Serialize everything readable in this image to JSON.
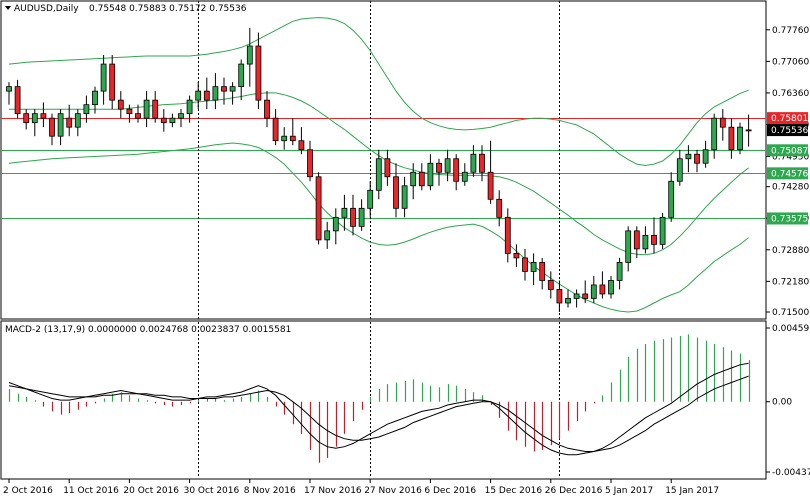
{
  "chart_data": [
    {
      "type": "candlestick",
      "symbol": "AUDUSD,Daily",
      "header_values": "0.75548 0.75883 0.75172 0.75536",
      "ylim": [
        0.715,
        0.78
      ],
      "y_ticks": [
        "0.77760",
        "0.77060",
        "0.76360",
        "0.75660",
        "0.74950",
        "0.74280",
        "0.73580",
        "0.72880",
        "0.72180",
        "0.71500"
      ],
      "x_tick_labels": [
        "2 Oct 2016",
        "11 Oct 2016",
        "20 Oct 2016",
        "30 Oct 2016",
        "8 Nov 2016",
        "17 Nov 2016",
        "27 Nov 2016",
        "6 Dec 2016",
        "15 Dec 2016",
        "26 Dec 2016",
        "5 Jan 2017",
        "15 Jan 2017"
      ],
      "x_tick_index": [
        0,
        7,
        14,
        21,
        28,
        35,
        42,
        49,
        56,
        63,
        70,
        77
      ],
      "separator_index": [
        22,
        42,
        64
      ],
      "current_price": {
        "value": 0.75536,
        "label": "0.75536"
      },
      "levels": [
        {
          "value": 0.75801,
          "label": "0.75801",
          "color": "#e8262a"
        },
        {
          "value": 0.75087,
          "label": "0.75087",
          "color": "#2ea84f"
        },
        {
          "value": 0.74576,
          "label": "0.74576",
          "color": "#2ea84f"
        },
        {
          "value": 0.73575,
          "label": "0.73575",
          "color": "#2ea84f"
        }
      ],
      "candles": [
        [
          0.764,
          0.766,
          0.761,
          0.765
        ],
        [
          0.765,
          0.7665,
          0.758,
          0.759
        ],
        [
          0.759,
          0.76,
          0.7555,
          0.757
        ],
        [
          0.757,
          0.76,
          0.754,
          0.759
        ],
        [
          0.759,
          0.7615,
          0.756,
          0.758
        ],
        [
          0.758,
          0.759,
          0.752,
          0.754
        ],
        [
          0.754,
          0.76,
          0.752,
          0.759
        ],
        [
          0.758,
          0.761,
          0.754,
          0.756
        ],
        [
          0.756,
          0.76,
          0.754,
          0.759
        ],
        [
          0.759,
          0.763,
          0.757,
          0.761
        ],
        [
          0.761,
          0.765,
          0.759,
          0.764
        ],
        [
          0.764,
          0.772,
          0.761,
          0.77
        ],
        [
          0.77,
          0.772,
          0.76,
          0.762
        ],
        [
          0.762,
          0.764,
          0.758,
          0.76
        ],
        [
          0.76,
          0.761,
          0.757,
          0.759
        ],
        [
          0.759,
          0.761,
          0.757,
          0.758
        ],
        [
          0.758,
          0.764,
          0.756,
          0.762
        ],
        [
          0.762,
          0.764,
          0.757,
          0.758
        ],
        [
          0.758,
          0.76,
          0.755,
          0.757
        ],
        [
          0.757,
          0.759,
          0.756,
          0.758
        ],
        [
          0.758,
          0.76,
          0.756,
          0.759
        ],
        [
          0.759,
          0.763,
          0.757,
          0.762
        ],
        [
          0.762,
          0.766,
          0.76,
          0.764
        ],
        [
          0.764,
          0.767,
          0.76,
          0.762
        ],
        [
          0.762,
          0.768,
          0.76,
          0.765
        ],
        [
          0.765,
          0.767,
          0.761,
          0.764
        ],
        [
          0.764,
          0.766,
          0.761,
          0.765
        ],
        [
          0.765,
          0.771,
          0.762,
          0.77
        ],
        [
          0.77,
          0.778,
          0.765,
          0.774
        ],
        [
          0.774,
          0.777,
          0.76,
          0.762
        ],
        [
          0.762,
          0.764,
          0.756,
          0.758
        ],
        [
          0.758,
          0.76,
          0.752,
          0.753
        ],
        [
          0.753,
          0.756,
          0.751,
          0.754
        ],
        [
          0.754,
          0.758,
          0.752,
          0.753
        ],
        [
          0.753,
          0.756,
          0.75,
          0.751
        ],
        [
          0.751,
          0.753,
          0.744,
          0.745
        ],
        [
          0.745,
          0.746,
          0.73,
          0.731
        ],
        [
          0.731,
          0.735,
          0.729,
          0.733
        ],
        [
          0.733,
          0.738,
          0.73,
          0.736
        ],
        [
          0.736,
          0.741,
          0.733,
          0.738
        ],
        [
          0.738,
          0.741,
          0.732,
          0.734
        ],
        [
          0.734,
          0.74,
          0.733,
          0.738
        ],
        [
          0.738,
          0.744,
          0.736,
          0.742
        ],
        [
          0.742,
          0.751,
          0.74,
          0.749
        ],
        [
          0.749,
          0.751,
          0.743,
          0.745
        ],
        [
          0.745,
          0.748,
          0.736,
          0.738
        ],
        [
          0.738,
          0.745,
          0.736,
          0.743
        ],
        [
          0.743,
          0.748,
          0.74,
          0.746
        ],
        [
          0.746,
          0.748,
          0.742,
          0.743
        ],
        [
          0.743,
          0.75,
          0.742,
          0.748
        ],
        [
          0.748,
          0.749,
          0.743,
          0.746
        ],
        [
          0.746,
          0.751,
          0.744,
          0.749
        ],
        [
          0.749,
          0.75,
          0.742,
          0.744
        ],
        [
          0.744,
          0.748,
          0.743,
          0.746
        ],
        [
          0.746,
          0.752,
          0.745,
          0.75
        ],
        [
          0.75,
          0.752,
          0.744,
          0.746
        ],
        [
          0.746,
          0.753,
          0.739,
          0.74
        ],
        [
          0.74,
          0.742,
          0.734,
          0.736
        ],
        [
          0.736,
          0.738,
          0.726,
          0.728
        ],
        [
          0.728,
          0.73,
          0.725,
          0.727
        ],
        [
          0.727,
          0.729,
          0.722,
          0.724
        ],
        [
          0.724,
          0.728,
          0.721,
          0.726
        ],
        [
          0.726,
          0.727,
          0.72,
          0.722
        ],
        [
          0.722,
          0.724,
          0.718,
          0.72
        ],
        [
          0.72,
          0.722,
          0.715,
          0.717
        ],
        [
          0.717,
          0.72,
          0.716,
          0.718
        ],
        [
          0.718,
          0.72,
          0.716,
          0.719
        ],
        [
          0.719,
          0.722,
          0.717,
          0.718
        ],
        [
          0.718,
          0.723,
          0.717,
          0.721
        ],
        [
          0.721,
          0.724,
          0.718,
          0.719
        ],
        [
          0.719,
          0.723,
          0.718,
          0.722
        ],
        [
          0.722,
          0.727,
          0.72,
          0.726
        ],
        [
          0.726,
          0.734,
          0.724,
          0.733
        ],
        [
          0.733,
          0.734,
          0.727,
          0.729
        ],
        [
          0.729,
          0.734,
          0.728,
          0.732
        ],
        [
          0.732,
          0.736,
          0.728,
          0.73
        ],
        [
          0.73,
          0.737,
          0.729,
          0.736
        ],
        [
          0.736,
          0.746,
          0.735,
          0.744
        ],
        [
          0.744,
          0.751,
          0.743,
          0.749
        ],
        [
          0.749,
          0.752,
          0.746,
          0.75
        ],
        [
          0.75,
          0.751,
          0.746,
          0.748
        ],
        [
          0.748,
          0.753,
          0.747,
          0.751
        ],
        [
          0.751,
          0.759,
          0.749,
          0.758
        ],
        [
          0.758,
          0.76,
          0.753,
          0.756
        ],
        [
          0.756,
          0.758,
          0.749,
          0.751
        ],
        [
          0.751,
          0.757,
          0.75,
          0.756
        ],
        [
          0.7554,
          0.7588,
          0.7517,
          0.7553
        ]
      ],
      "bollinger_upper": [
        0.77,
        0.7702,
        0.7704,
        0.7705,
        0.7706,
        0.7707,
        0.7708,
        0.7709,
        0.771,
        0.7711,
        0.7712,
        0.7713,
        0.7714,
        0.7715,
        0.7716,
        0.7717,
        0.7718,
        0.7718,
        0.7718,
        0.7718,
        0.7718,
        0.7718,
        0.772,
        0.7722,
        0.7725,
        0.7728,
        0.7732,
        0.7737,
        0.7745,
        0.7755,
        0.7765,
        0.7775,
        0.7785,
        0.7795,
        0.78,
        0.7802,
        0.7803,
        0.7802,
        0.7798,
        0.779,
        0.7775,
        0.7755,
        0.773,
        0.77,
        0.767,
        0.764,
        0.7615,
        0.7595,
        0.758,
        0.757,
        0.7563,
        0.7558,
        0.7555,
        0.7554,
        0.7555,
        0.7557,
        0.756,
        0.7565,
        0.757,
        0.7575,
        0.7578,
        0.758,
        0.758,
        0.7578,
        0.7575,
        0.757,
        0.7565,
        0.7555,
        0.7545,
        0.753,
        0.7515,
        0.75,
        0.7488,
        0.7478,
        0.7475,
        0.7478,
        0.7485,
        0.75,
        0.752,
        0.7545,
        0.757,
        0.759,
        0.7605,
        0.7615,
        0.7625,
        0.7635,
        0.7642
      ],
      "bollinger_middle": [
        0.76,
        0.76,
        0.76,
        0.76,
        0.76,
        0.76,
        0.76,
        0.76,
        0.76,
        0.76,
        0.76,
        0.76,
        0.76,
        0.76,
        0.7602,
        0.7604,
        0.7606,
        0.7608,
        0.761,
        0.7611,
        0.7612,
        0.7614,
        0.7616,
        0.7618,
        0.762,
        0.7622,
        0.7625,
        0.7628,
        0.7632,
        0.7635,
        0.7636,
        0.7636,
        0.7632,
        0.7626,
        0.7618,
        0.7608,
        0.7595,
        0.7582,
        0.7568,
        0.7555,
        0.754,
        0.7525,
        0.751,
        0.7497,
        0.7485,
        0.7477,
        0.747,
        0.7465,
        0.746,
        0.7457,
        0.7455,
        0.7454,
        0.7453,
        0.7453,
        0.7453,
        0.7453,
        0.7452,
        0.745,
        0.7445,
        0.7438,
        0.7428,
        0.7418,
        0.7405,
        0.7392,
        0.7378,
        0.7365,
        0.735,
        0.7337,
        0.7322,
        0.731,
        0.73,
        0.729,
        0.7282,
        0.7278,
        0.7277,
        0.728,
        0.7288,
        0.73,
        0.7318,
        0.7338,
        0.736,
        0.7382,
        0.7402,
        0.742,
        0.7438,
        0.7455,
        0.747
      ],
      "bollinger_lower": [
        0.748,
        0.7482,
        0.7484,
        0.7486,
        0.7488,
        0.749,
        0.7491,
        0.7492,
        0.7493,
        0.7494,
        0.7495,
        0.7496,
        0.7497,
        0.7498,
        0.7499,
        0.75,
        0.7502,
        0.7504,
        0.7506,
        0.7508,
        0.751,
        0.7512,
        0.7515,
        0.7518,
        0.7521,
        0.7523,
        0.7525,
        0.7523,
        0.752,
        0.7515,
        0.7505,
        0.7493,
        0.7478,
        0.7458,
        0.7438,
        0.7415,
        0.739,
        0.737,
        0.7352,
        0.7337,
        0.7325,
        0.7314,
        0.7305,
        0.73,
        0.7298,
        0.73,
        0.7305,
        0.7312,
        0.732,
        0.7327,
        0.7333,
        0.7338,
        0.7341,
        0.7343,
        0.7345,
        0.734,
        0.733,
        0.7318,
        0.7302,
        0.7285,
        0.7268,
        0.7252,
        0.7238,
        0.7225,
        0.7212,
        0.72,
        0.7188,
        0.7178,
        0.717,
        0.7162,
        0.7156,
        0.7152,
        0.715,
        0.7152,
        0.716,
        0.717,
        0.718,
        0.7188,
        0.7195,
        0.721,
        0.7228,
        0.7245,
        0.7262,
        0.7275,
        0.7288,
        0.73,
        0.7315
      ]
    },
    {
      "type": "macd",
      "title": "MACD-2 (13,17,9) 0.0000000 0.0024768 0.0023837 0.0015581",
      "ylim": [
        -0.004378,
        0.004595
      ],
      "y_ticks": [
        "0.004595",
        "0.00",
        "-0.004378"
      ],
      "histogram": [
        0.0008,
        0.0005,
        0.0003,
        0.0001,
        -0.0003,
        -0.0006,
        -0.0008,
        -0.0007,
        -0.0005,
        -0.0003,
        -0.0001,
        0.0002,
        0.0005,
        0.0006,
        0.0004,
        0.0002,
        0.0001,
        -0.0001,
        -0.0002,
        -0.0003,
        -0.0002,
        -0.0001,
        0.0001,
        0.0002,
        0.0002,
        0.0001,
        0.0002,
        0.0003,
        0.0005,
        0.0007,
        0.0003,
        -0.0003,
        -0.0008,
        -0.0014,
        -0.002,
        -0.003,
        -0.0038,
        -0.0035,
        -0.0028,
        -0.002,
        -0.0012,
        -0.0005,
        0.0003,
        0.0008,
        0.0011,
        0.0012,
        0.0013,
        0.0014,
        0.0012,
        0.001,
        0.0009,
        0.0011,
        0.001,
        0.0008,
        0.0006,
        0.0004,
        -0.0002,
        -0.001,
        -0.0018,
        -0.0024,
        -0.0028,
        -0.0031,
        -0.003,
        -0.0027,
        -0.0023,
        -0.0018,
        -0.0012,
        -0.0006,
        -0.0001,
        0.0004,
        0.0012,
        0.002,
        0.0028,
        0.0033,
        0.0036,
        0.0038,
        0.0039,
        0.004,
        0.0041,
        0.0042,
        0.004,
        0.0038,
        0.0036,
        0.0034,
        0.0032,
        0.003,
        0.0026
      ],
      "macd_line": [
        0.0012,
        0.001,
        0.0008,
        0.0006,
        0.0004,
        0.0002,
        0.0001,
        0.0001,
        0.0002,
        0.0003,
        0.0004,
        0.0005,
        0.0006,
        0.0007,
        0.0006,
        0.0005,
        0.0004,
        0.0003,
        0.0002,
        0.0001,
        0.0001,
        0.0001,
        0.0002,
        0.0003,
        0.0003,
        0.0004,
        0.0005,
        0.0006,
        0.0008,
        0.001,
        0.0008,
        0.0004,
        -0.0002,
        -0.0008,
        -0.0014,
        -0.002,
        -0.0025,
        -0.0028,
        -0.0029,
        -0.0028,
        -0.0026,
        -0.0023,
        -0.002,
        -0.0017,
        -0.0014,
        -0.0012,
        -0.001,
        -0.0008,
        -0.0006,
        -0.0005,
        -0.0004,
        -0.0002,
        -0.0001,
        0.0,
        0.0001,
        0.0001,
        0.0,
        -0.0004,
        -0.0009,
        -0.0014,
        -0.0019,
        -0.0023,
        -0.0027,
        -0.003,
        -0.0032,
        -0.0033,
        -0.0033,
        -0.0032,
        -0.0031,
        -0.0029,
        -0.0026,
        -0.0022,
        -0.0018,
        -0.0014,
        -0.001,
        -0.0007,
        -0.0004,
        -0.0001,
        0.0003,
        0.0007,
        0.0011,
        0.0014,
        0.0017,
        0.0019,
        0.0021,
        0.0023,
        0.0024
      ],
      "signal_line": [
        0.001,
        0.0009,
        0.0008,
        0.0007,
        0.0006,
        0.0005,
        0.0004,
        0.0003,
        0.0003,
        0.0003,
        0.0003,
        0.0004,
        0.0004,
        0.0005,
        0.0005,
        0.0005,
        0.0005,
        0.0004,
        0.0004,
        0.0003,
        0.0003,
        0.0002,
        0.0002,
        0.0002,
        0.0002,
        0.0003,
        0.0003,
        0.0004,
        0.0005,
        0.0006,
        0.0007,
        0.0006,
        0.0004,
        0.0,
        -0.0004,
        -0.0009,
        -0.0014,
        -0.0018,
        -0.0021,
        -0.0023,
        -0.0024,
        -0.0024,
        -0.0023,
        -0.0022,
        -0.002,
        -0.0018,
        -0.0016,
        -0.0013,
        -0.0011,
        -0.0009,
        -0.0007,
        -0.0005,
        -0.0003,
        -0.0002,
        -0.0001,
        0.0,
        0.0,
        -0.0002,
        -0.0005,
        -0.0009,
        -0.0013,
        -0.0017,
        -0.0021,
        -0.0024,
        -0.0027,
        -0.0029,
        -0.003,
        -0.0031,
        -0.0031,
        -0.003,
        -0.0029,
        -0.0027,
        -0.0024,
        -0.0021,
        -0.0018,
        -0.0014,
        -0.0011,
        -0.0008,
        -0.0005,
        -0.0002,
        0.0002,
        0.0005,
        0.0008,
        0.001,
        0.0012,
        0.0014,
        0.0016
      ]
    }
  ]
}
